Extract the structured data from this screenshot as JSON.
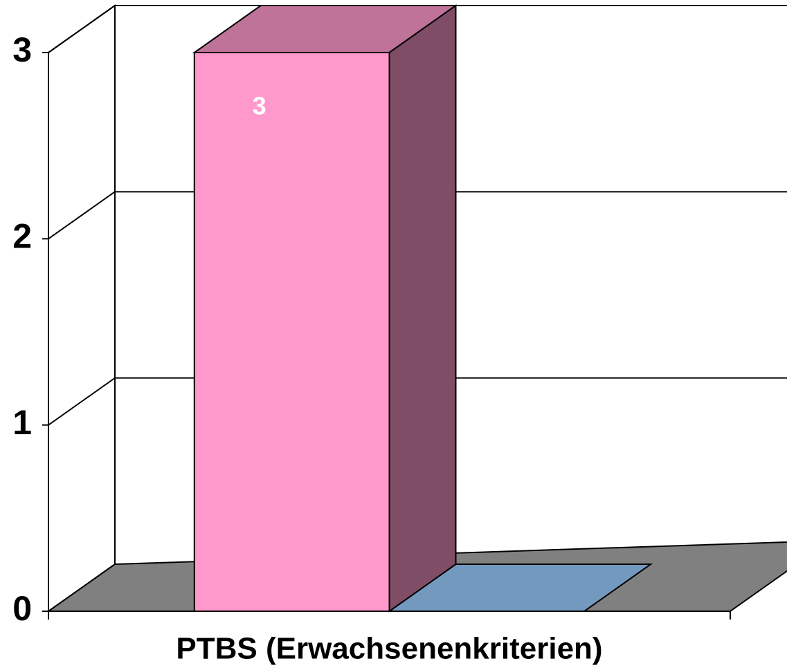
{
  "chart_data": {
    "type": "bar3d",
    "categories": [
      "PTBS (Erwachsenenkriterien)"
    ],
    "series": [
      {
        "color": "#ff99cc",
        "values": [
          3
        ]
      },
      {
        "color": "#99ccff",
        "values": [
          0
        ]
      }
    ],
    "ylim": [
      0,
      3
    ],
    "yticks": [
      0,
      1,
      2,
      3
    ],
    "grid": true,
    "floor_color": "#808080"
  }
}
